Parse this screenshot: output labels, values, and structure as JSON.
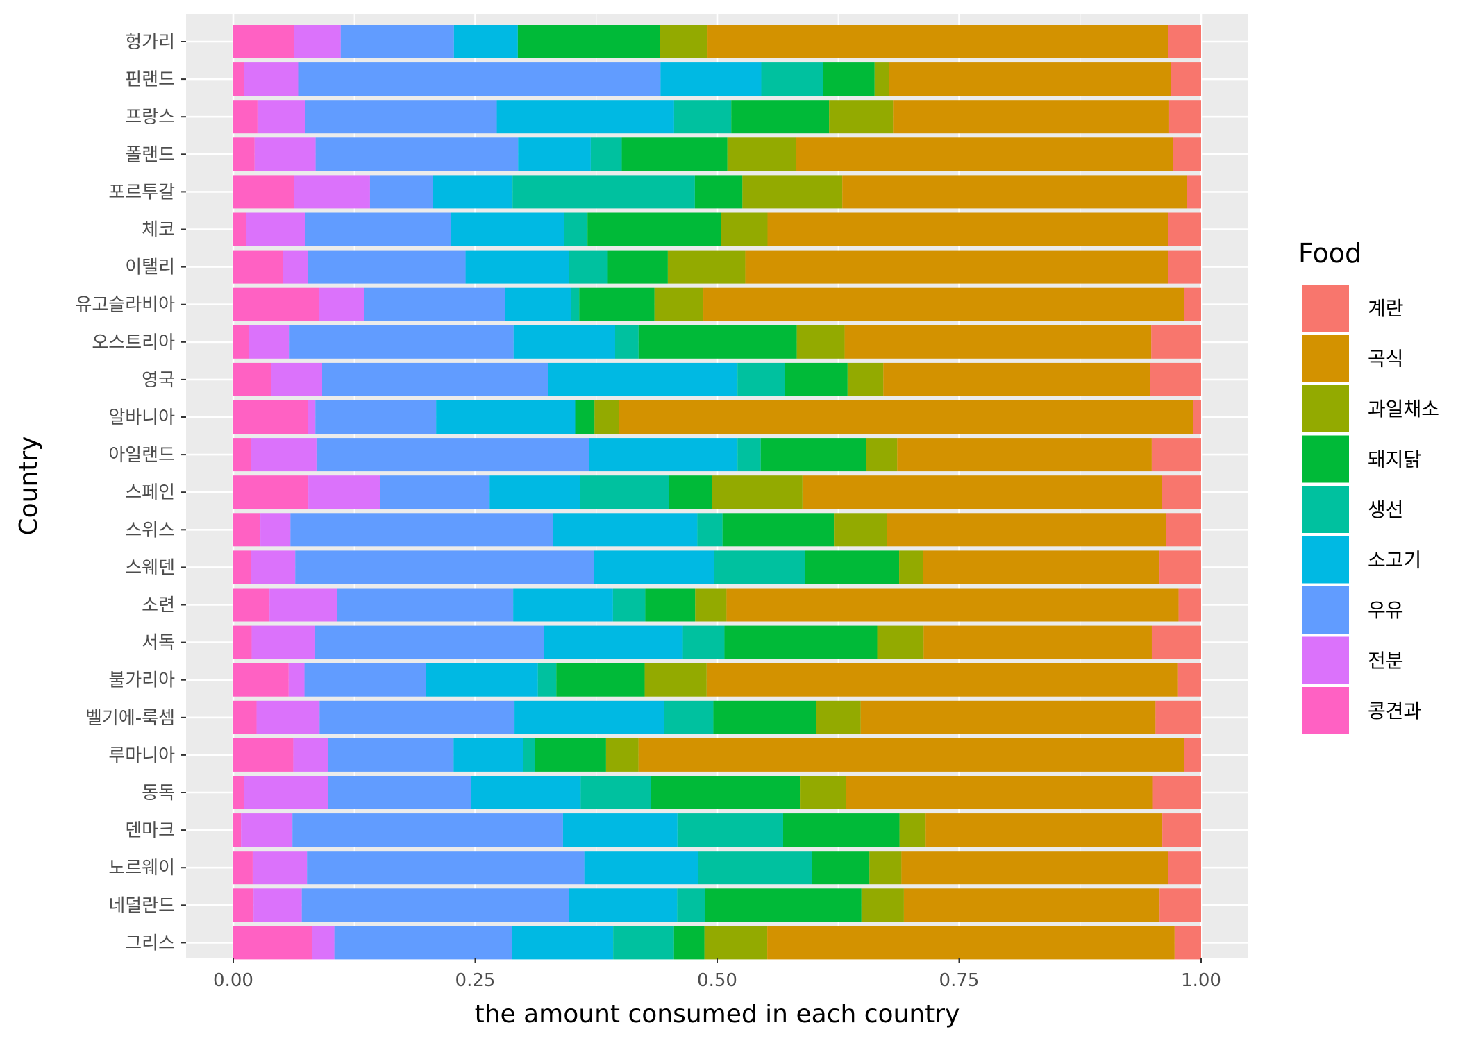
{
  "chart_data": {
    "type": "bar",
    "orientation": "horizontal",
    "stacked": "fill",
    "xlabel": "the amount consumed in each country",
    "ylabel": "Country",
    "xlim": [
      0,
      1
    ],
    "x_ticks": [
      "0.00",
      "0.25",
      "0.50",
      "0.75",
      "1.00"
    ],
    "grid": true,
    "legend_position": "right",
    "legend_title": "Food",
    "categories": [
      "헝가리",
      "핀랜드",
      "프랑스",
      "폴랜드",
      "포르투갈",
      "체코",
      "이탤리",
      "유고슬라비아",
      "오스트리아",
      "영국",
      "알바니아",
      "아일랜드",
      "스페인",
      "스위스",
      "스웨덴",
      "소련",
      "서독",
      "불가리아",
      "벨기에-룩셈",
      "루마니아",
      "동독",
      "덴마크",
      "노르웨이",
      "네덜란드",
      "그리스"
    ],
    "stack_order": [
      "콩견과",
      "전분",
      "우유",
      "소고기",
      "생선",
      "돼지닭",
      "과일채소",
      "곡식",
      "계란"
    ],
    "legend": [
      {
        "name": "계란",
        "color": "#F8766D"
      },
      {
        "name": "곡식",
        "color": "#D39200"
      },
      {
        "name": "과일채소",
        "color": "#93AA00"
      },
      {
        "name": "돼지닭",
        "color": "#00BA38"
      },
      {
        "name": "생선",
        "color": "#00C19F"
      },
      {
        "name": "소고기",
        "color": "#00B9E3"
      },
      {
        "name": "우유",
        "color": "#619CFF"
      },
      {
        "name": "전분",
        "color": "#DB72FB"
      },
      {
        "name": "콩견과",
        "color": "#FF61C3"
      }
    ],
    "series": [
      {
        "name": "콩견과",
        "values": [
          0.063,
          0.011,
          0.025,
          0.022,
          0.063,
          0.013,
          0.051,
          0.065,
          0.016,
          0.039,
          0.077,
          0.018,
          0.077,
          0.028,
          0.018,
          0.037,
          0.019,
          0.042,
          0.024,
          0.061,
          0.011,
          0.008,
          0.02,
          0.021,
          0.08
        ]
      },
      {
        "name": "전분",
        "values": [
          0.048,
          0.056,
          0.049,
          0.063,
          0.078,
          0.061,
          0.026,
          0.034,
          0.041,
          0.053,
          0.008,
          0.068,
          0.074,
          0.031,
          0.046,
          0.069,
          0.065,
          0.012,
          0.065,
          0.035,
          0.086,
          0.053,
          0.056,
          0.05,
          0.023
        ]
      },
      {
        "name": "우유",
        "values": [
          0.117,
          0.374,
          0.198,
          0.209,
          0.065,
          0.151,
          0.163,
          0.107,
          0.23,
          0.234,
          0.125,
          0.282,
          0.112,
          0.271,
          0.309,
          0.18,
          0.237,
          0.092,
          0.201,
          0.128,
          0.146,
          0.279,
          0.286,
          0.277,
          0.181
        ]
      },
      {
        "name": "소고기",
        "values": [
          0.066,
          0.104,
          0.183,
          0.075,
          0.082,
          0.117,
          0.107,
          0.05,
          0.104,
          0.196,
          0.144,
          0.153,
          0.093,
          0.149,
          0.124,
          0.102,
          0.144,
          0.085,
          0.154,
          0.071,
          0.112,
          0.118,
          0.117,
          0.112,
          0.103
        ]
      },
      {
        "name": "생선",
        "values": [
          0.0,
          0.064,
          0.059,
          0.032,
          0.188,
          0.024,
          0.04,
          0.006,
          0.024,
          0.049,
          0.0,
          0.024,
          0.091,
          0.026,
          0.094,
          0.033,
          0.043,
          0.014,
          0.051,
          0.012,
          0.072,
          0.109,
          0.118,
          0.029,
          0.062
        ]
      },
      {
        "name": "돼지닭",
        "values": [
          0.147,
          0.053,
          0.101,
          0.109,
          0.049,
          0.138,
          0.062,
          0.057,
          0.162,
          0.065,
          0.02,
          0.109,
          0.044,
          0.115,
          0.097,
          0.051,
          0.158,
          0.067,
          0.106,
          0.072,
          0.152,
          0.12,
          0.059,
          0.162,
          0.031
        ]
      },
      {
        "name": "과일채소",
        "values": [
          0.049,
          0.015,
          0.066,
          0.071,
          0.103,
          0.048,
          0.08,
          0.037,
          0.049,
          0.037,
          0.025,
          0.032,
          0.093,
          0.055,
          0.025,
          0.032,
          0.048,
          0.047,
          0.046,
          0.033,
          0.047,
          0.027,
          0.033,
          0.044,
          0.064
        ]
      },
      {
        "name": "곡식",
        "values": [
          0.476,
          0.291,
          0.285,
          0.389,
          0.355,
          0.414,
          0.437,
          0.364,
          0.314,
          0.276,
          0.595,
          0.263,
          0.369,
          0.288,
          0.244,
          0.462,
          0.236,
          0.357,
          0.304,
          0.555,
          0.313,
          0.244,
          0.275,
          0.265,
          0.415
        ]
      },
      {
        "name": "계란",
        "values": [
          0.034,
          0.031,
          0.033,
          0.029,
          0.015,
          0.034,
          0.034,
          0.013,
          0.051,
          0.053,
          0.008,
          0.051,
          0.04,
          0.036,
          0.043,
          0.023,
          0.051,
          0.018,
          0.047,
          0.017,
          0.05,
          0.04,
          0.034,
          0.043,
          0.027
        ]
      }
    ]
  }
}
